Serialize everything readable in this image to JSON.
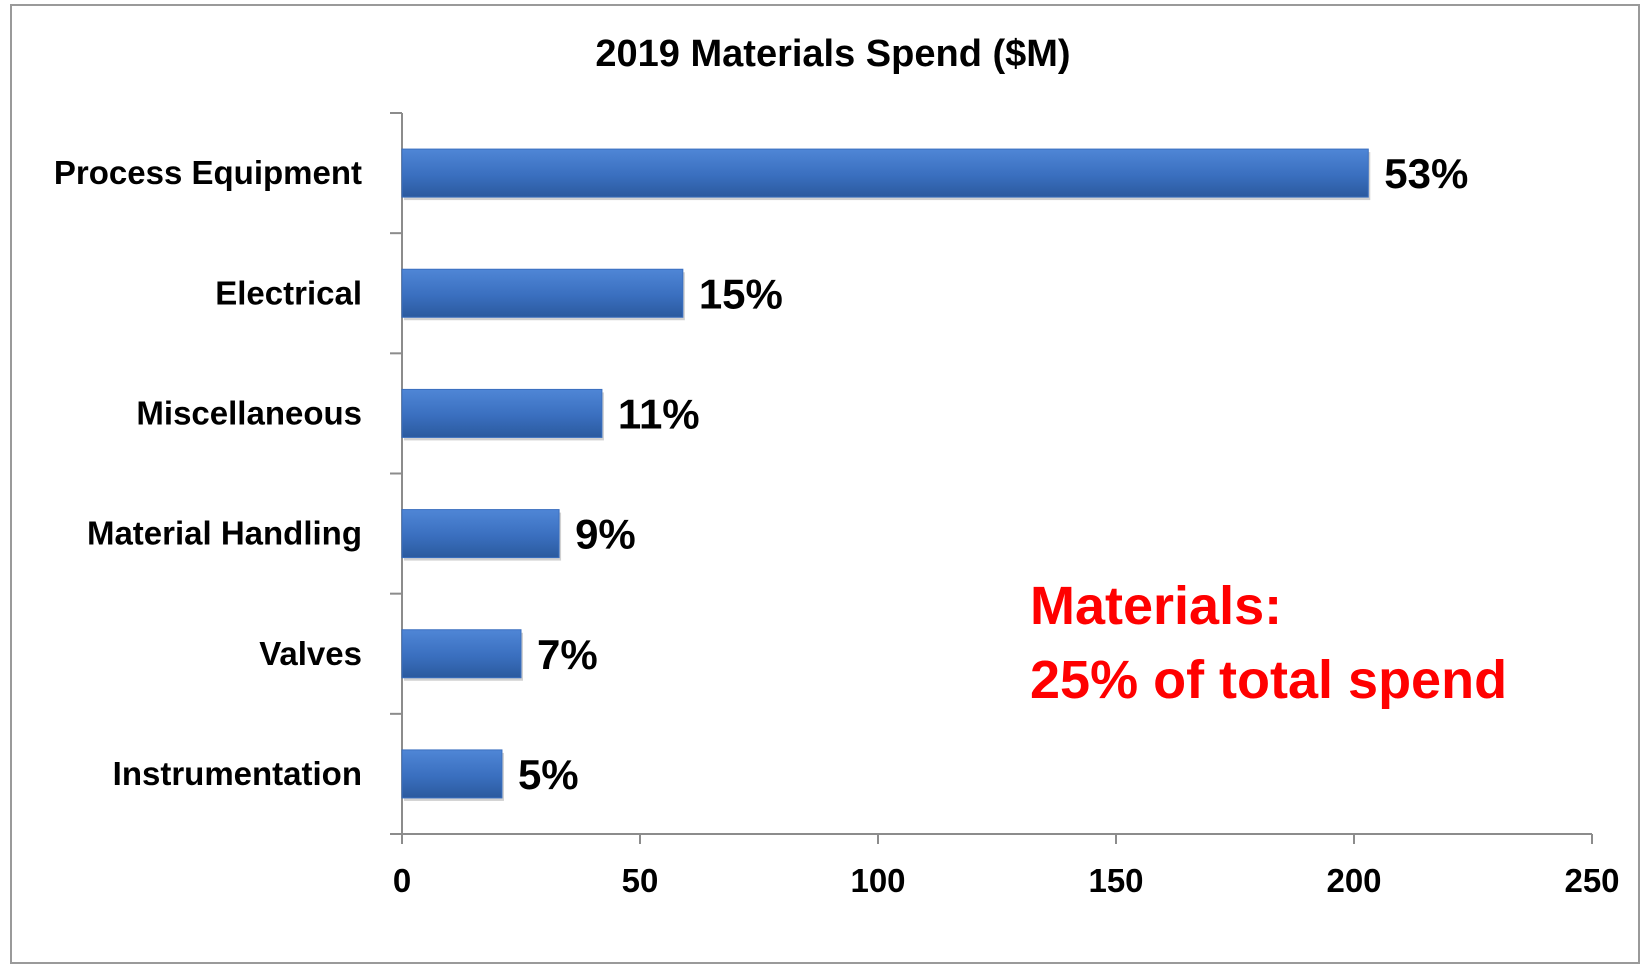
{
  "chart_data": {
    "type": "bar",
    "orientation": "horizontal",
    "title": "2019 Materials Spend ($M)",
    "xlabel": "",
    "ylabel": "",
    "categories": [
      "Process Equipment",
      "Electrical",
      "Miscellaneous",
      "Material Handling",
      "Valves",
      "Instrumentation"
    ],
    "values": [
      203,
      59,
      42,
      33,
      25,
      21
    ],
    "data_labels": [
      "53%",
      "15%",
      "11%",
      "9%",
      "7%",
      "5%"
    ],
    "xlim": [
      0,
      250
    ],
    "x_ticks": [
      "0",
      "50",
      "100",
      "150",
      "200",
      "250"
    ],
    "x_tick_values": [
      0,
      50,
      100,
      150,
      200,
      250
    ],
    "grid": false,
    "legend": "none",
    "bar_color": "#3A6FBF",
    "annotation": {
      "lines": [
        "Materials:",
        "25% of total spend"
      ],
      "color": "#FF0000"
    }
  }
}
